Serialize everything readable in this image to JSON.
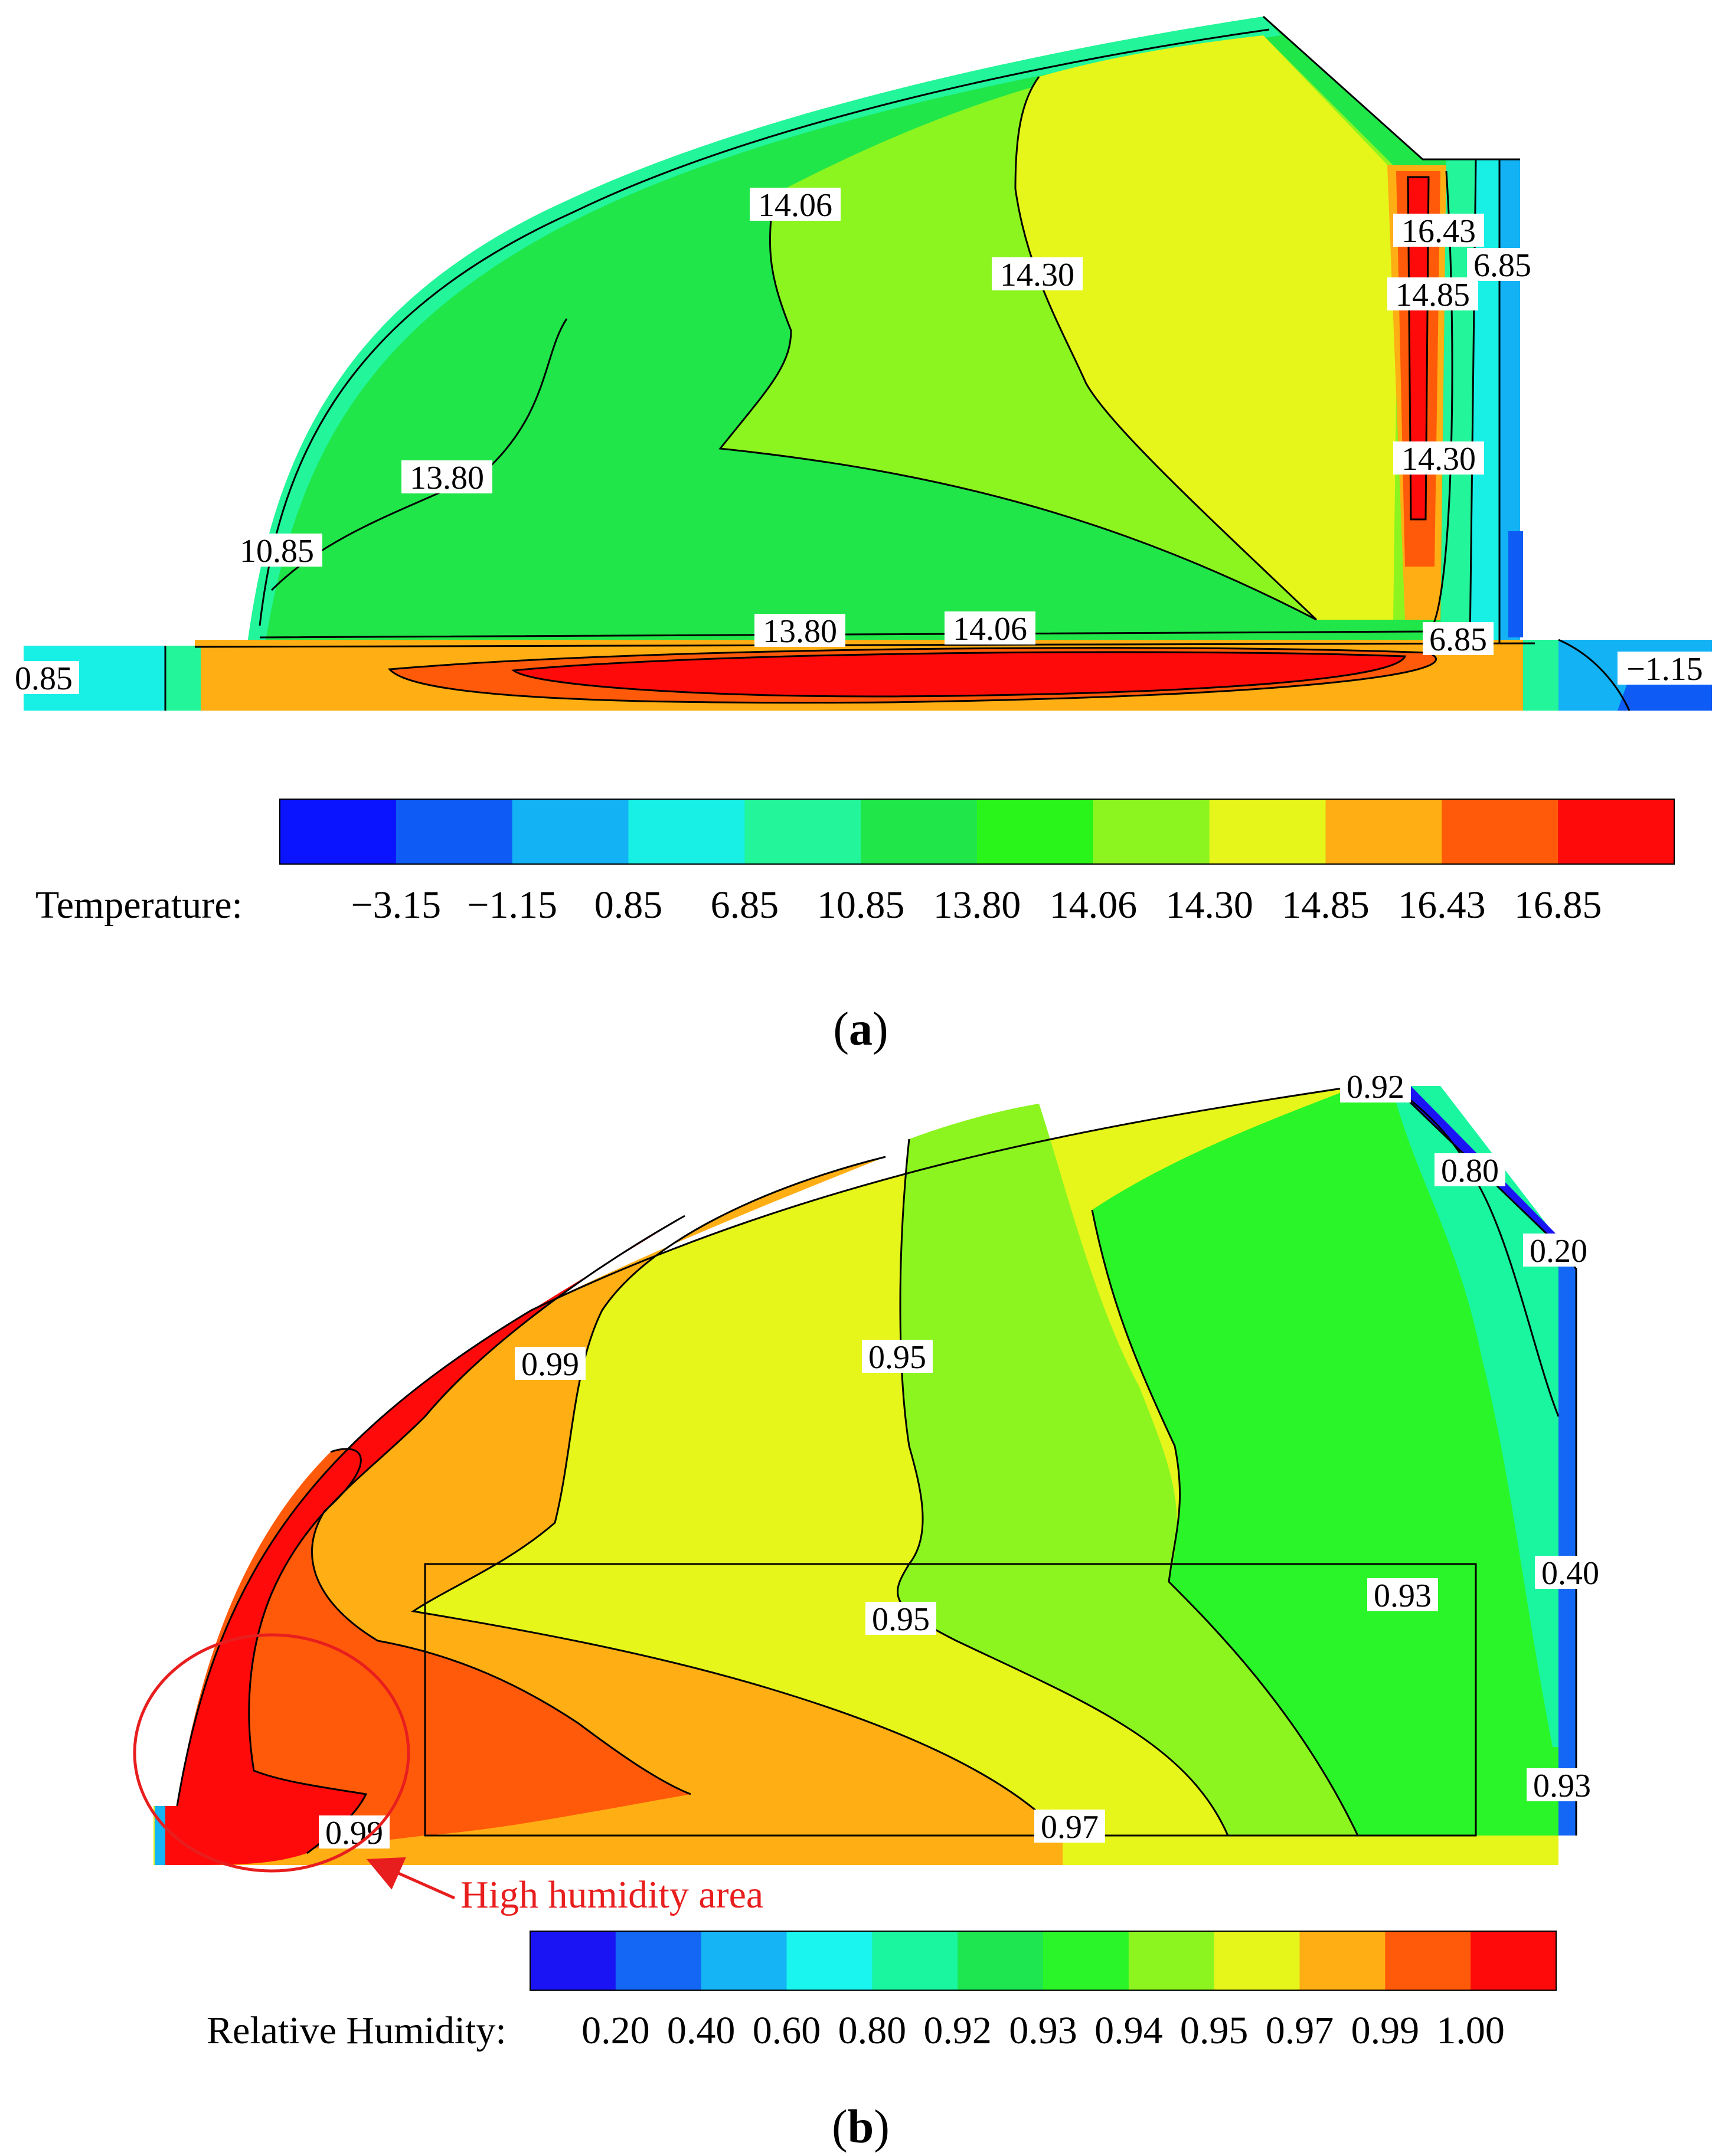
{
  "panels": [
    {
      "id": "a",
      "caption_open": "(",
      "caption_letter": "a",
      "caption_close": ")",
      "legend_title": "Temperature:",
      "legend_colors": [
        "#0a14ff",
        "#0e5cf5",
        "#12b2f5",
        "#18f0e6",
        "#22f59a",
        "#20e64a",
        "#2af51a",
        "#8cf520",
        "#e6f51a",
        "#ffae14",
        "#ff5a0a",
        "#ff0a0a"
      ],
      "legend_ticks": [
        "−3.15",
        "−1.15",
        "0.85",
        "6.85",
        "10.85",
        "13.80",
        "14.06",
        "14.30",
        "14.85",
        "16.43",
        "16.85"
      ],
      "contour_labels": [
        "14.06",
        "14.30",
        "16.43",
        "6.85",
        "14.85",
        "13.80",
        "14.30",
        "10.85",
        "13.80",
        "14.06",
        "6.85",
        "0.85",
        "−1.15"
      ]
    },
    {
      "id": "b",
      "caption_open": "(",
      "caption_letter": "b",
      "caption_close": ")",
      "legend_title": "Relative Humidity:",
      "legend_colors": [
        "#1a14f5",
        "#1466f5",
        "#14b4f5",
        "#1af5f0",
        "#1af5a0",
        "#1ee650",
        "#2af528",
        "#8cf520",
        "#e6f51a",
        "#ffae14",
        "#ff5a0a",
        "#ff0a0a"
      ],
      "legend_ticks": [
        "0.20",
        "0.40",
        "0.60",
        "0.80",
        "0.92",
        "0.93",
        "0.94",
        "0.95",
        "0.97",
        "0.99",
        "1.00"
      ],
      "contour_labels": [
        "0.92",
        "0.80",
        "0.20",
        "0.99",
        "0.95",
        "0.40",
        "0.95",
        "0.93",
        "0.93",
        "0.97",
        "0.99"
      ],
      "annotation": "High humidity area"
    }
  ]
}
